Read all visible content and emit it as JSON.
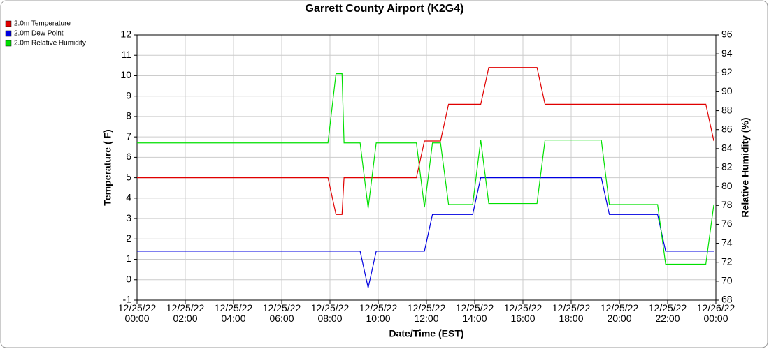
{
  "chart_data": {
    "type": "line",
    "title": "Garrett County Airport (K2G4)",
    "x_label": "Date/Time (EST)",
    "y_label": "Temperature ( F)",
    "y2_label": "Relative Humidity (%)",
    "xlim": [
      "12/25/22 00:00",
      "12/26/22 00:00"
    ],
    "xticks": [
      {
        "value": "12/25/22 00:00",
        "label": "12/25/22\n00:00"
      },
      {
        "value": "12/25/22 02:00",
        "label": "12/25/22\n02:00"
      },
      {
        "value": "12/25/22 04:00",
        "label": "12/25/22\n04:00"
      },
      {
        "value": "12/25/22 06:00",
        "label": "12/25/22\n06:00"
      },
      {
        "value": "12/25/22 08:00",
        "label": "12/25/22\n08:00"
      },
      {
        "value": "12/25/22 10:00",
        "label": "12/25/22\n10:00"
      },
      {
        "value": "12/25/22 12:00",
        "label": "12/25/22\n12:00"
      },
      {
        "value": "12/25/22 14:00",
        "label": "12/25/22\n14:00"
      },
      {
        "value": "12/25/22 16:00",
        "label": "12/25/22\n16:00"
      },
      {
        "value": "12/25/22 18:00",
        "label": "12/25/22\n18:00"
      },
      {
        "value": "12/25/22 20:00",
        "label": "12/25/22\n20:00"
      },
      {
        "value": "12/25/22 22:00",
        "label": "12/25/22\n22:00"
      },
      {
        "value": "12/26/22 00:00",
        "label": "12/26/22\n00:00"
      }
    ],
    "ylim": [
      -1,
      12
    ],
    "yticks": [
      -1,
      0,
      1,
      2,
      3,
      4,
      5,
      6,
      7,
      8,
      9,
      10,
      11,
      12
    ],
    "y2lim": [
      68,
      96
    ],
    "y2ticks": [
      68,
      70,
      72,
      74,
      76,
      78,
      80,
      82,
      84,
      86,
      88,
      90,
      92,
      94,
      96
    ],
    "grid": true,
    "legend": "top-left",
    "series": [
      {
        "name": "2.0m Temperature",
        "color": "#e00000",
        "x": [
          "12/25/22 00:00",
          "12/25/22 07:55",
          "12/25/22 08:15",
          "12/25/22 08:30",
          "12/25/22 08:35",
          "12/25/22 11:35",
          "12/25/22 11:55",
          "12/25/22 12:35",
          "12/25/22 12:55",
          "12/25/22 14:15",
          "12/25/22 14:35",
          "12/25/22 16:35",
          "12/25/22 16:55",
          "12/25/22 23:35",
          "12/25/22 23:55"
        ],
        "values": [
          5,
          5,
          3.2,
          3.2,
          5,
          5,
          6.8,
          6.8,
          8.6,
          8.6,
          10.4,
          10.4,
          8.6,
          8.6,
          6.8
        ]
      },
      {
        "name": "2.0m Dew Point",
        "color": "#0000e0",
        "x": [
          "12/25/22 00:00",
          "12/25/22 09:15",
          "12/25/22 09:35",
          "12/25/22 09:55",
          "12/25/22 11:55",
          "12/25/22 12:15",
          "12/25/22 13:55",
          "12/25/22 14:15",
          "12/25/22 19:15",
          "12/25/22 19:35",
          "12/25/22 21:35",
          "12/25/22 21:55",
          "12/25/22 23:55"
        ],
        "values": [
          1.4,
          1.4,
          -0.4,
          1.4,
          1.4,
          3.2,
          3.2,
          5,
          5,
          3.2,
          3.2,
          1.4,
          1.4
        ]
      },
      {
        "name": "2.0m Relative Humidity",
        "color": "#00e000",
        "axis": "y2",
        "x": [
          "12/25/22 00:00",
          "12/25/22 07:55",
          "12/25/22 08:15",
          "12/25/22 08:30",
          "12/25/22 08:35",
          "12/25/22 09:15",
          "12/25/22 09:35",
          "12/25/22 09:55",
          "12/25/22 11:35",
          "12/25/22 11:55",
          "12/25/22 12:15",
          "12/25/22 12:35",
          "12/25/22 12:55",
          "12/25/22 13:55",
          "12/25/22 14:15",
          "12/25/22 14:35",
          "12/25/22 16:35",
          "12/25/22 16:55",
          "12/25/22 19:15",
          "12/25/22 19:35",
          "12/25/22 21:35",
          "12/25/22 21:55",
          "12/25/22 23:35",
          "12/25/22 23:55"
        ],
        "values": [
          84.6,
          84.6,
          91.9,
          91.9,
          84.6,
          84.6,
          77.7,
          84.6,
          84.6,
          77.8,
          84.6,
          84.6,
          78.1,
          78.1,
          84.9,
          78.2,
          78.2,
          84.9,
          84.9,
          78.1,
          78.1,
          71.8,
          71.8,
          78.1
        ]
      }
    ]
  }
}
